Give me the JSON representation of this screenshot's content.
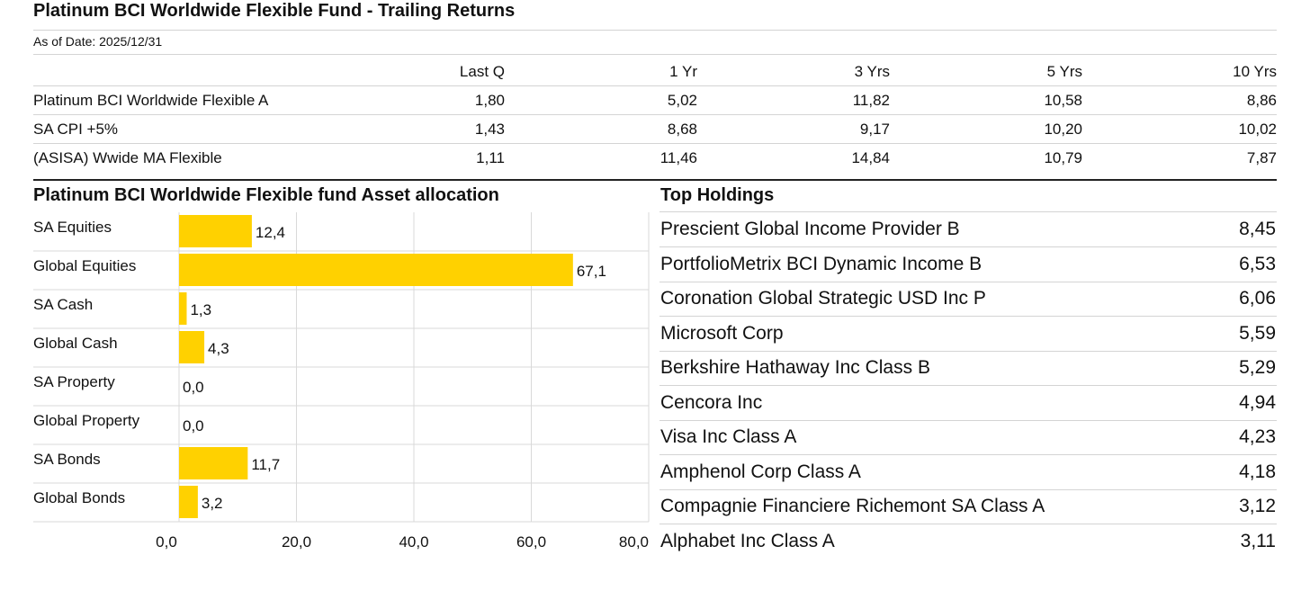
{
  "returns": {
    "title": "Platinum BCI Worldwide Flexible Fund - Trailing Returns",
    "as_of": "As of Date: 2025/12/31",
    "columns": [
      "Last Q",
      "1 Yr",
      "3 Yrs",
      "5 Yrs",
      "10 Yrs"
    ],
    "rows": [
      {
        "name": "Platinum BCI Worldwide Flexible A",
        "values": [
          "1,80",
          "5,02",
          "11,82",
          "10,58",
          "8,86"
        ]
      },
      {
        "name": "SA CPI +5%",
        "values": [
          "1,43",
          "8,68",
          "9,17",
          "10,20",
          "10,02"
        ]
      },
      {
        "name": "(ASISA) Wwide MA Flexible",
        "values": [
          "1,11",
          "11,46",
          "14,84",
          "10,79",
          "7,87"
        ]
      }
    ]
  },
  "allocation": {
    "title": "Platinum BCI Worldwide Flexible fund Asset allocation",
    "bar_color": "#FFD100"
  },
  "chart_data": {
    "type": "bar",
    "orientation": "horizontal",
    "title": "Platinum BCI Worldwide Flexible fund Asset allocation",
    "categories": [
      "SA Equities",
      "Global Equities",
      "SA Cash",
      "Global Cash",
      "SA Property",
      "Global Property",
      "SA Bonds",
      "Global Bonds"
    ],
    "values": [
      12.4,
      67.1,
      1.3,
      4.3,
      0.0,
      0.0,
      11.7,
      3.2
    ],
    "value_labels": [
      "12,4",
      "67,1",
      "1,3",
      "4,3",
      "0,0",
      "0,0",
      "11,7",
      "3,2"
    ],
    "xlim": [
      0,
      80
    ],
    "xticks": [
      0,
      20,
      40,
      60,
      80
    ],
    "xtick_labels": [
      "0,0",
      "20,0",
      "40,0",
      "60,0",
      "80,0"
    ],
    "grid": true,
    "legend": "none"
  },
  "holdings": {
    "title": "Top Holdings",
    "items": [
      {
        "name": "Prescient Global Income Provider B",
        "value": "8,45"
      },
      {
        "name": "PortfolioMetrix BCI Dynamic Income B",
        "value": "6,53"
      },
      {
        "name": "Coronation Global Strategic USD Inc P",
        "value": "6,06"
      },
      {
        "name": "Microsoft Corp",
        "value": "5,59"
      },
      {
        "name": "Berkshire Hathaway Inc Class B",
        "value": "5,29"
      },
      {
        "name": "Cencora Inc",
        "value": "4,94"
      },
      {
        "name": "Visa Inc Class A",
        "value": "4,23"
      },
      {
        "name": "Amphenol Corp Class A",
        "value": "4,18"
      },
      {
        "name": "Compagnie Financiere Richemont SA Class A",
        "value": "3,12"
      },
      {
        "name": "Alphabet Inc Class A",
        "value": "3,11"
      }
    ]
  }
}
